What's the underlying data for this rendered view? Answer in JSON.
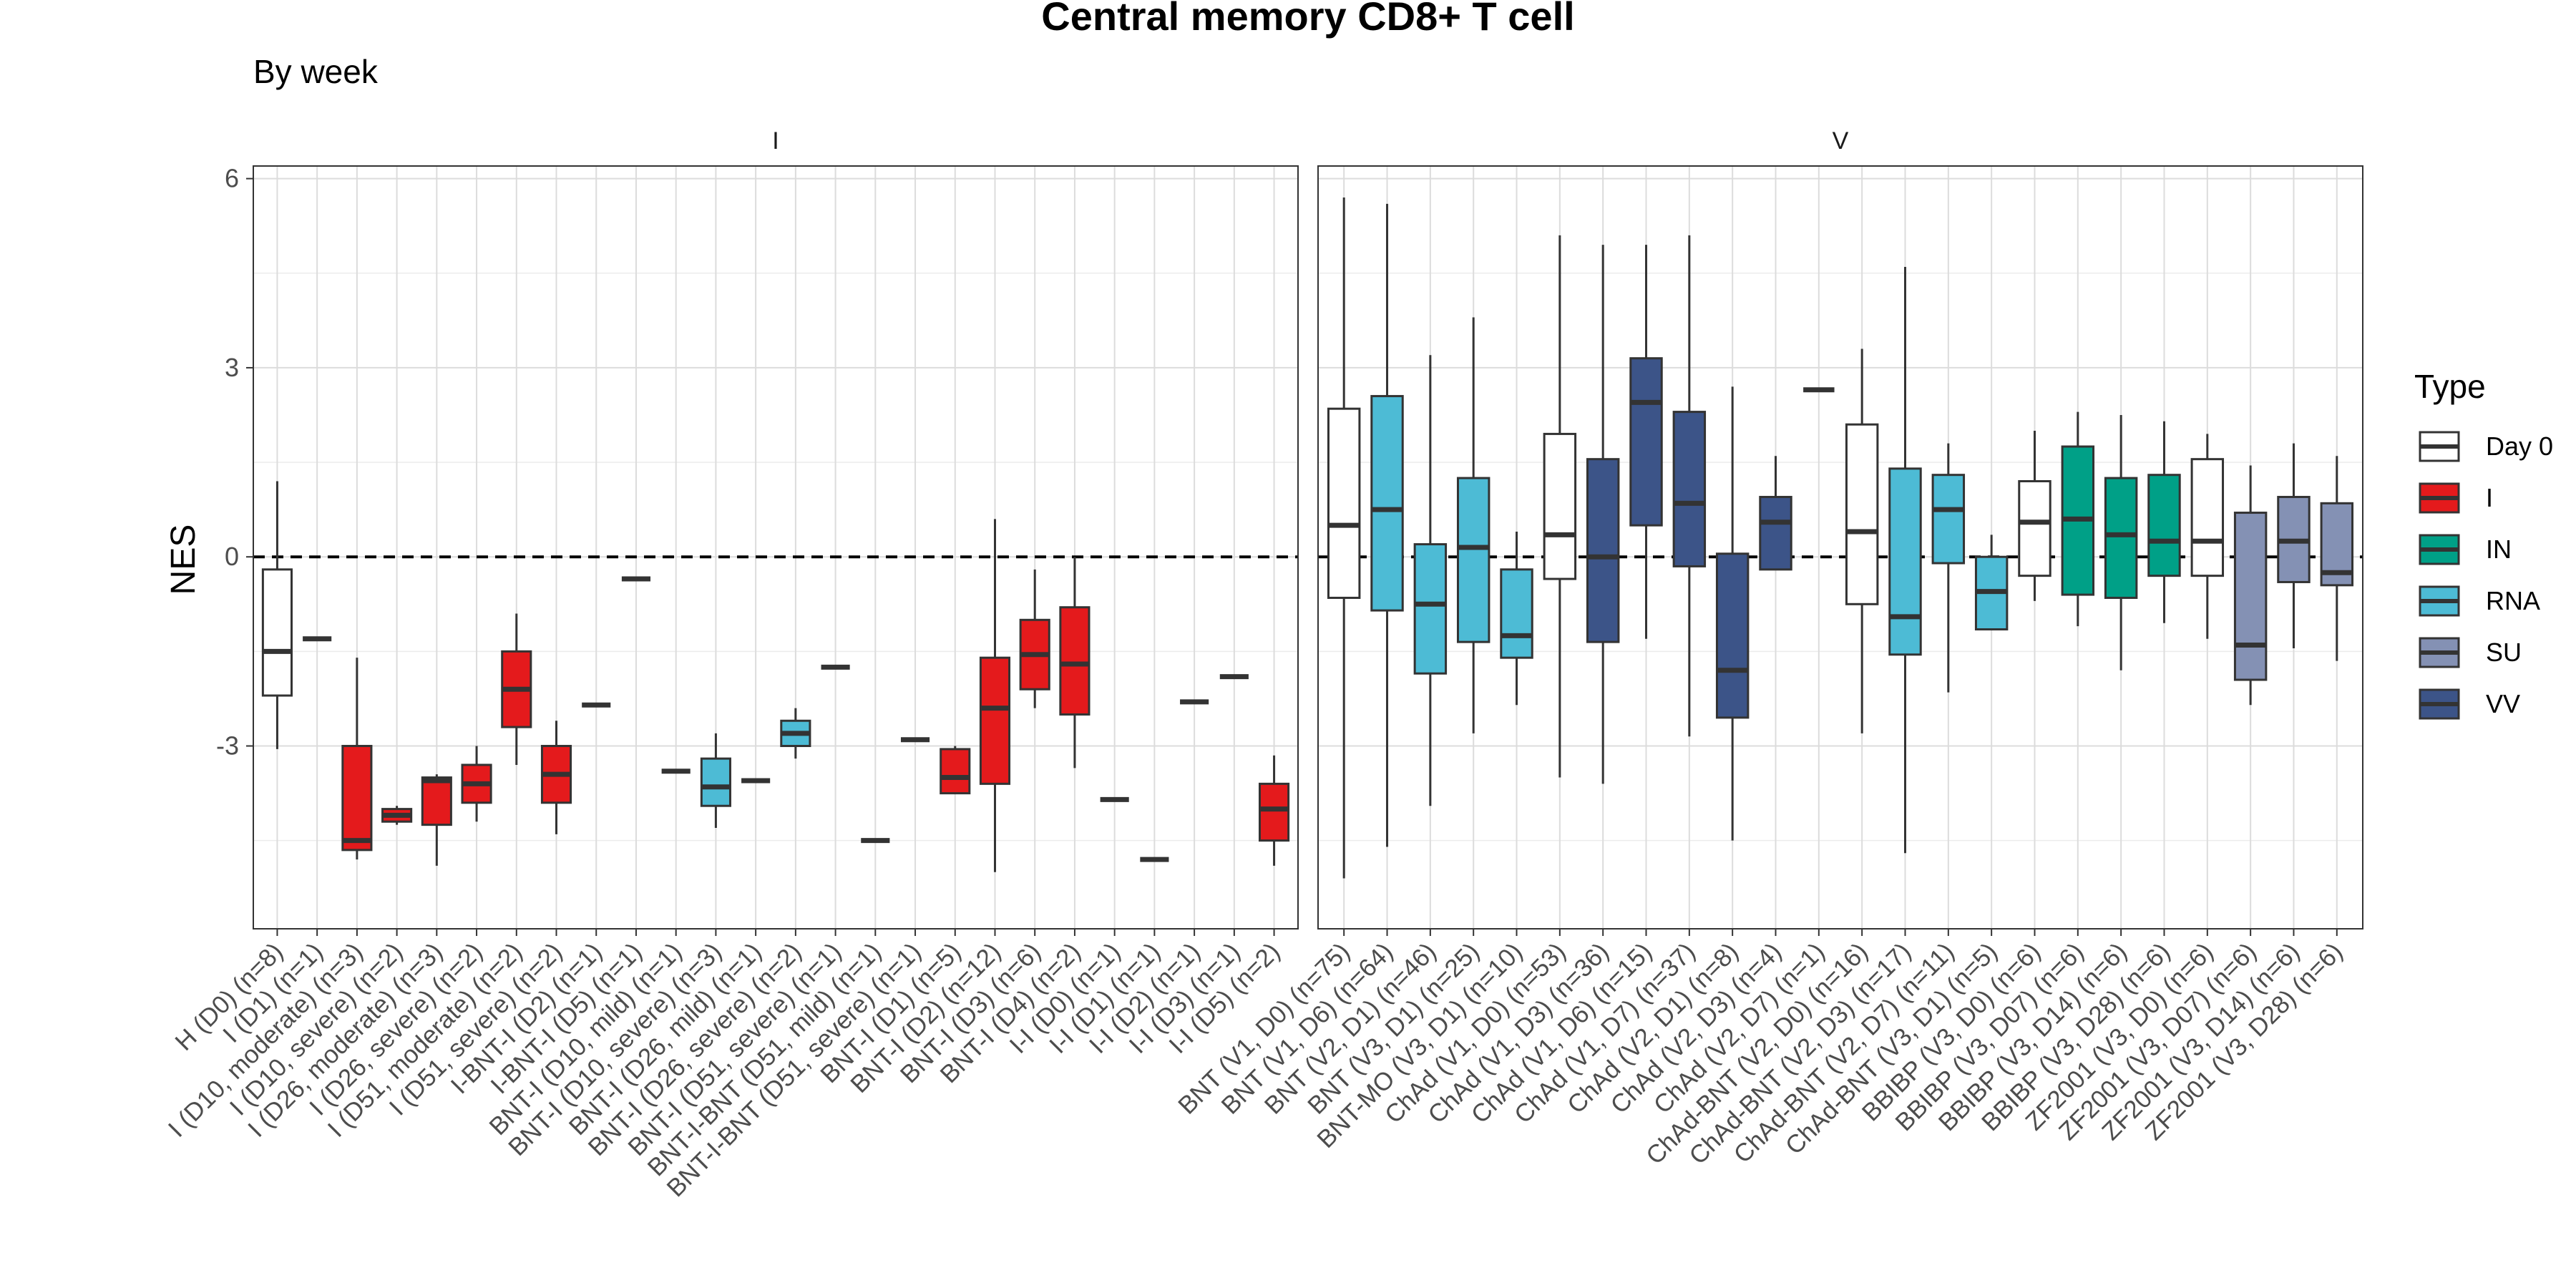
{
  "chart_data": {
    "type": "box",
    "title": "Central memory CD8+ T cell",
    "subtitle": "By week",
    "ylabel": "NES",
    "xlabel": "",
    "ylim": [
      -5.9,
      6.2
    ],
    "yticks": [
      -3,
      0,
      3,
      6
    ],
    "reference_line": 0,
    "grid": true,
    "legend": {
      "title": "Type",
      "position": "right",
      "items": [
        {
          "label": "Day 0",
          "color": "#ffffff"
        },
        {
          "label": "I",
          "color": "#e41a1c"
        },
        {
          "label": "IN",
          "color": "#00a087"
        },
        {
          "label": "RNA",
          "color": "#4dbbd5"
        },
        {
          "label": "SU",
          "color": "#8491b4"
        },
        {
          "label": "VV",
          "color": "#3c5488"
        }
      ]
    },
    "panels": [
      {
        "strip": "I",
        "groups": [
          {
            "label": "H (D0) (n=8)",
            "type": "Day 0",
            "min": -3.05,
            "q1": -2.2,
            "median": -1.5,
            "q3": -0.2,
            "max": 1.2
          },
          {
            "label": "I (D1) (n=1)",
            "type": "I",
            "min": -1.3,
            "q1": -1.3,
            "median": -1.3,
            "q3": -1.3,
            "max": -1.3
          },
          {
            "label": "I (D10, moderate) (n=3)",
            "type": "I",
            "min": -4.8,
            "q1": -4.65,
            "median": -4.5,
            "q3": -3.0,
            "max": -1.6
          },
          {
            "label": "I (D10, severe) (n=2)",
            "type": "I",
            "min": -4.25,
            "q1": -4.2,
            "median": -4.1,
            "q3": -4.0,
            "max": -3.95
          },
          {
            "label": "I (D26, moderate) (n=3)",
            "type": "I",
            "min": -4.9,
            "q1": -4.25,
            "median": -3.55,
            "q3": -3.5,
            "max": -3.45
          },
          {
            "label": "I (D26, severe) (n=2)",
            "type": "I",
            "min": -4.2,
            "q1": -3.9,
            "median": -3.6,
            "q3": -3.3,
            "max": -3.0
          },
          {
            "label": "I (D51, moderate) (n=2)",
            "type": "I",
            "min": -3.3,
            "q1": -2.7,
            "median": -2.1,
            "q3": -1.5,
            "max": -0.9
          },
          {
            "label": "I (D51, severe) (n=2)",
            "type": "I",
            "min": -4.4,
            "q1": -3.9,
            "median": -3.45,
            "q3": -3.0,
            "max": -2.6
          },
          {
            "label": "I-BNT-I (D2) (n=1)",
            "type": "I",
            "min": -2.35,
            "q1": -2.35,
            "median": -2.35,
            "q3": -2.35,
            "max": -2.35
          },
          {
            "label": "I-BNT-I (D5) (n=1)",
            "type": "I",
            "min": -0.35,
            "q1": -0.35,
            "median": -0.35,
            "q3": -0.35,
            "max": -0.35
          },
          {
            "label": "BNT-I (D10, mild) (n=1)",
            "type": "RNA",
            "min": -3.4,
            "q1": -3.4,
            "median": -3.4,
            "q3": -3.4,
            "max": -3.4
          },
          {
            "label": "BNT-I (D10, severe) (n=3)",
            "type": "RNA",
            "min": -4.3,
            "q1": -3.95,
            "median": -3.65,
            "q3": -3.2,
            "max": -2.8
          },
          {
            "label": "BNT-I (D26, mild) (n=1)",
            "type": "RNA",
            "min": -3.55,
            "q1": -3.55,
            "median": -3.55,
            "q3": -3.55,
            "max": -3.55
          },
          {
            "label": "BNT-I (D26, severe) (n=2)",
            "type": "RNA",
            "min": -3.2,
            "q1": -3.0,
            "median": -2.8,
            "q3": -2.6,
            "max": -2.4
          },
          {
            "label": "BNT-I (D51, severe) (n=1)",
            "type": "RNA",
            "min": -1.75,
            "q1": -1.75,
            "median": -1.75,
            "q3": -1.75,
            "max": -1.75
          },
          {
            "label": "BNT-I-BNT (D51, mild) (n=1)",
            "type": "RNA",
            "min": -4.5,
            "q1": -4.5,
            "median": -4.5,
            "q3": -4.5,
            "max": -4.5
          },
          {
            "label": "BNT-I-BNT (D51, severe) (n=1)",
            "type": "RNA",
            "min": -2.9,
            "q1": -2.9,
            "median": -2.9,
            "q3": -2.9,
            "max": -2.9
          },
          {
            "label": "BNT-I (D1) (n=5)",
            "type": "I",
            "min": -3.75,
            "q1": -3.75,
            "median": -3.5,
            "q3": -3.05,
            "max": -3.0
          },
          {
            "label": "BNT-I (D2) (n=12)",
            "type": "I",
            "min": -5.0,
            "q1": -3.6,
            "median": -2.4,
            "q3": -1.6,
            "max": 0.6
          },
          {
            "label": "BNT-I (D3) (n=6)",
            "type": "I",
            "min": -2.4,
            "q1": -2.1,
            "median": -1.55,
            "q3": -1.0,
            "max": -0.2
          },
          {
            "label": "BNT-I (D4) (n=2)",
            "type": "I",
            "min": -3.35,
            "q1": -2.5,
            "median": -1.7,
            "q3": -0.8,
            "max": 0.0
          },
          {
            "label": "I-I (D0) (n=1)",
            "type": "Day 0",
            "min": -3.85,
            "q1": -3.85,
            "median": -3.85,
            "q3": -3.85,
            "max": -3.85
          },
          {
            "label": "I-I (D1) (n=1)",
            "type": "I",
            "min": -4.8,
            "q1": -4.8,
            "median": -4.8,
            "q3": -4.8,
            "max": -4.8
          },
          {
            "label": "I-I (D2) (n=1)",
            "type": "I",
            "min": -2.3,
            "q1": -2.3,
            "median": -2.3,
            "q3": -2.3,
            "max": -2.3
          },
          {
            "label": "I-I (D3) (n=1)",
            "type": "I",
            "min": -1.9,
            "q1": -1.9,
            "median": -1.9,
            "q3": -1.9,
            "max": -1.9
          },
          {
            "label": "I-I (D5) (n=2)",
            "type": "I",
            "min": -4.9,
            "q1": -4.5,
            "median": -4.0,
            "q3": -3.6,
            "max": -3.15
          }
        ]
      },
      {
        "strip": "V",
        "groups": [
          {
            "label": "BNT (V1, D0) (n=75)",
            "type": "Day 0",
            "min": -5.1,
            "q1": -0.65,
            "median": 0.5,
            "q3": 2.35,
            "max": 5.7
          },
          {
            "label": "BNT (V1, D6) (n=64)",
            "type": "RNA",
            "min": -4.6,
            "q1": -0.85,
            "median": 0.75,
            "q3": 2.55,
            "max": 5.6
          },
          {
            "label": "BNT (V2, D1) (n=46)",
            "type": "RNA",
            "min": -3.95,
            "q1": -1.85,
            "median": -0.75,
            "q3": 0.2,
            "max": 3.2
          },
          {
            "label": "BNT (V3, D1) (n=25)",
            "type": "RNA",
            "min": -2.8,
            "q1": -1.35,
            "median": 0.15,
            "q3": 1.25,
            "max": 3.8
          },
          {
            "label": "BNT-MO (V3, D1) (n=10)",
            "type": "RNA",
            "min": -2.35,
            "q1": -1.6,
            "median": -1.25,
            "q3": -0.2,
            "max": 0.4
          },
          {
            "label": "ChAd (V1, D0) (n=53)",
            "type": "Day 0",
            "min": -3.5,
            "q1": -0.35,
            "median": 0.35,
            "q3": 1.95,
            "max": 5.1
          },
          {
            "label": "ChAd (V1, D3) (n=36)",
            "type": "VV",
            "min": -3.6,
            "q1": -1.35,
            "median": 0.0,
            "q3": 1.55,
            "max": 4.95
          },
          {
            "label": "ChAd (V1, D6) (n=15)",
            "type": "VV",
            "min": -1.3,
            "q1": 0.5,
            "median": 2.45,
            "q3": 3.15,
            "max": 4.95
          },
          {
            "label": "ChAd (V1, D7) (n=37)",
            "type": "VV",
            "min": -2.85,
            "q1": -0.15,
            "median": 0.85,
            "q3": 2.3,
            "max": 5.1
          },
          {
            "label": "ChAd (V2, D1) (n=8)",
            "type": "VV",
            "min": -4.5,
            "q1": -2.55,
            "median": -1.8,
            "q3": 0.05,
            "max": 2.7
          },
          {
            "label": "ChAd (V2, D3) (n=4)",
            "type": "VV",
            "min": -0.2,
            "q1": -0.2,
            "median": 0.55,
            "q3": 0.95,
            "max": 1.6
          },
          {
            "label": "ChAd (V2, D7) (n=1)",
            "type": "VV",
            "min": 2.65,
            "q1": 2.65,
            "median": 2.65,
            "q3": 2.65,
            "max": 2.65
          },
          {
            "label": "ChAd-BNT (V2, D0) (n=16)",
            "type": "Day 0",
            "min": -2.8,
            "q1": -0.75,
            "median": 0.4,
            "q3": 2.1,
            "max": 3.3
          },
          {
            "label": "ChAd-BNT (V2, D3) (n=17)",
            "type": "RNA",
            "min": -4.7,
            "q1": -1.55,
            "median": -0.95,
            "q3": 1.4,
            "max": 4.6
          },
          {
            "label": "ChAd-BNT (V2, D7) (n=11)",
            "type": "RNA",
            "min": -2.15,
            "q1": -0.1,
            "median": 0.75,
            "q3": 1.3,
            "max": 1.8
          },
          {
            "label": "ChAd-BNT (V3, D1) (n=5)",
            "type": "RNA",
            "min": -1.15,
            "q1": -1.15,
            "median": -0.55,
            "q3": 0.0,
            "max": 0.35
          },
          {
            "label": "BBIBP (V3, D0) (n=6)",
            "type": "Day 0",
            "min": -0.7,
            "q1": -0.3,
            "median": 0.55,
            "q3": 1.2,
            "max": 2.0
          },
          {
            "label": "BBIBP (V3, D07) (n=6)",
            "type": "IN",
            "min": -1.1,
            "q1": -0.6,
            "median": 0.6,
            "q3": 1.75,
            "max": 2.3
          },
          {
            "label": "BBIBP (V3, D14) (n=6)",
            "type": "IN",
            "min": -1.8,
            "q1": -0.65,
            "median": 0.35,
            "q3": 1.25,
            "max": 2.25
          },
          {
            "label": "BBIBP (V3, D28) (n=6)",
            "type": "IN",
            "min": -1.05,
            "q1": -0.3,
            "median": 0.25,
            "q3": 1.3,
            "max": 2.15
          },
          {
            "label": "ZF2001 (V3, D0) (n=6)",
            "type": "Day 0",
            "min": -1.3,
            "q1": -0.3,
            "median": 0.25,
            "q3": 1.55,
            "max": 1.95
          },
          {
            "label": "ZF2001 (V3, D07) (n=6)",
            "type": "SU",
            "min": -2.35,
            "q1": -1.95,
            "median": -1.4,
            "q3": 0.7,
            "max": 1.45
          },
          {
            "label": "ZF2001 (V3, D14) (n=6)",
            "type": "SU",
            "min": -1.45,
            "q1": -0.4,
            "median": 0.25,
            "q3": 0.95,
            "max": 1.8
          },
          {
            "label": "ZF2001 (V3, D28) (n=6)",
            "type": "SU",
            "min": -1.65,
            "q1": -0.45,
            "median": -0.25,
            "q3": 0.85,
            "max": 1.6
          }
        ]
      }
    ]
  }
}
